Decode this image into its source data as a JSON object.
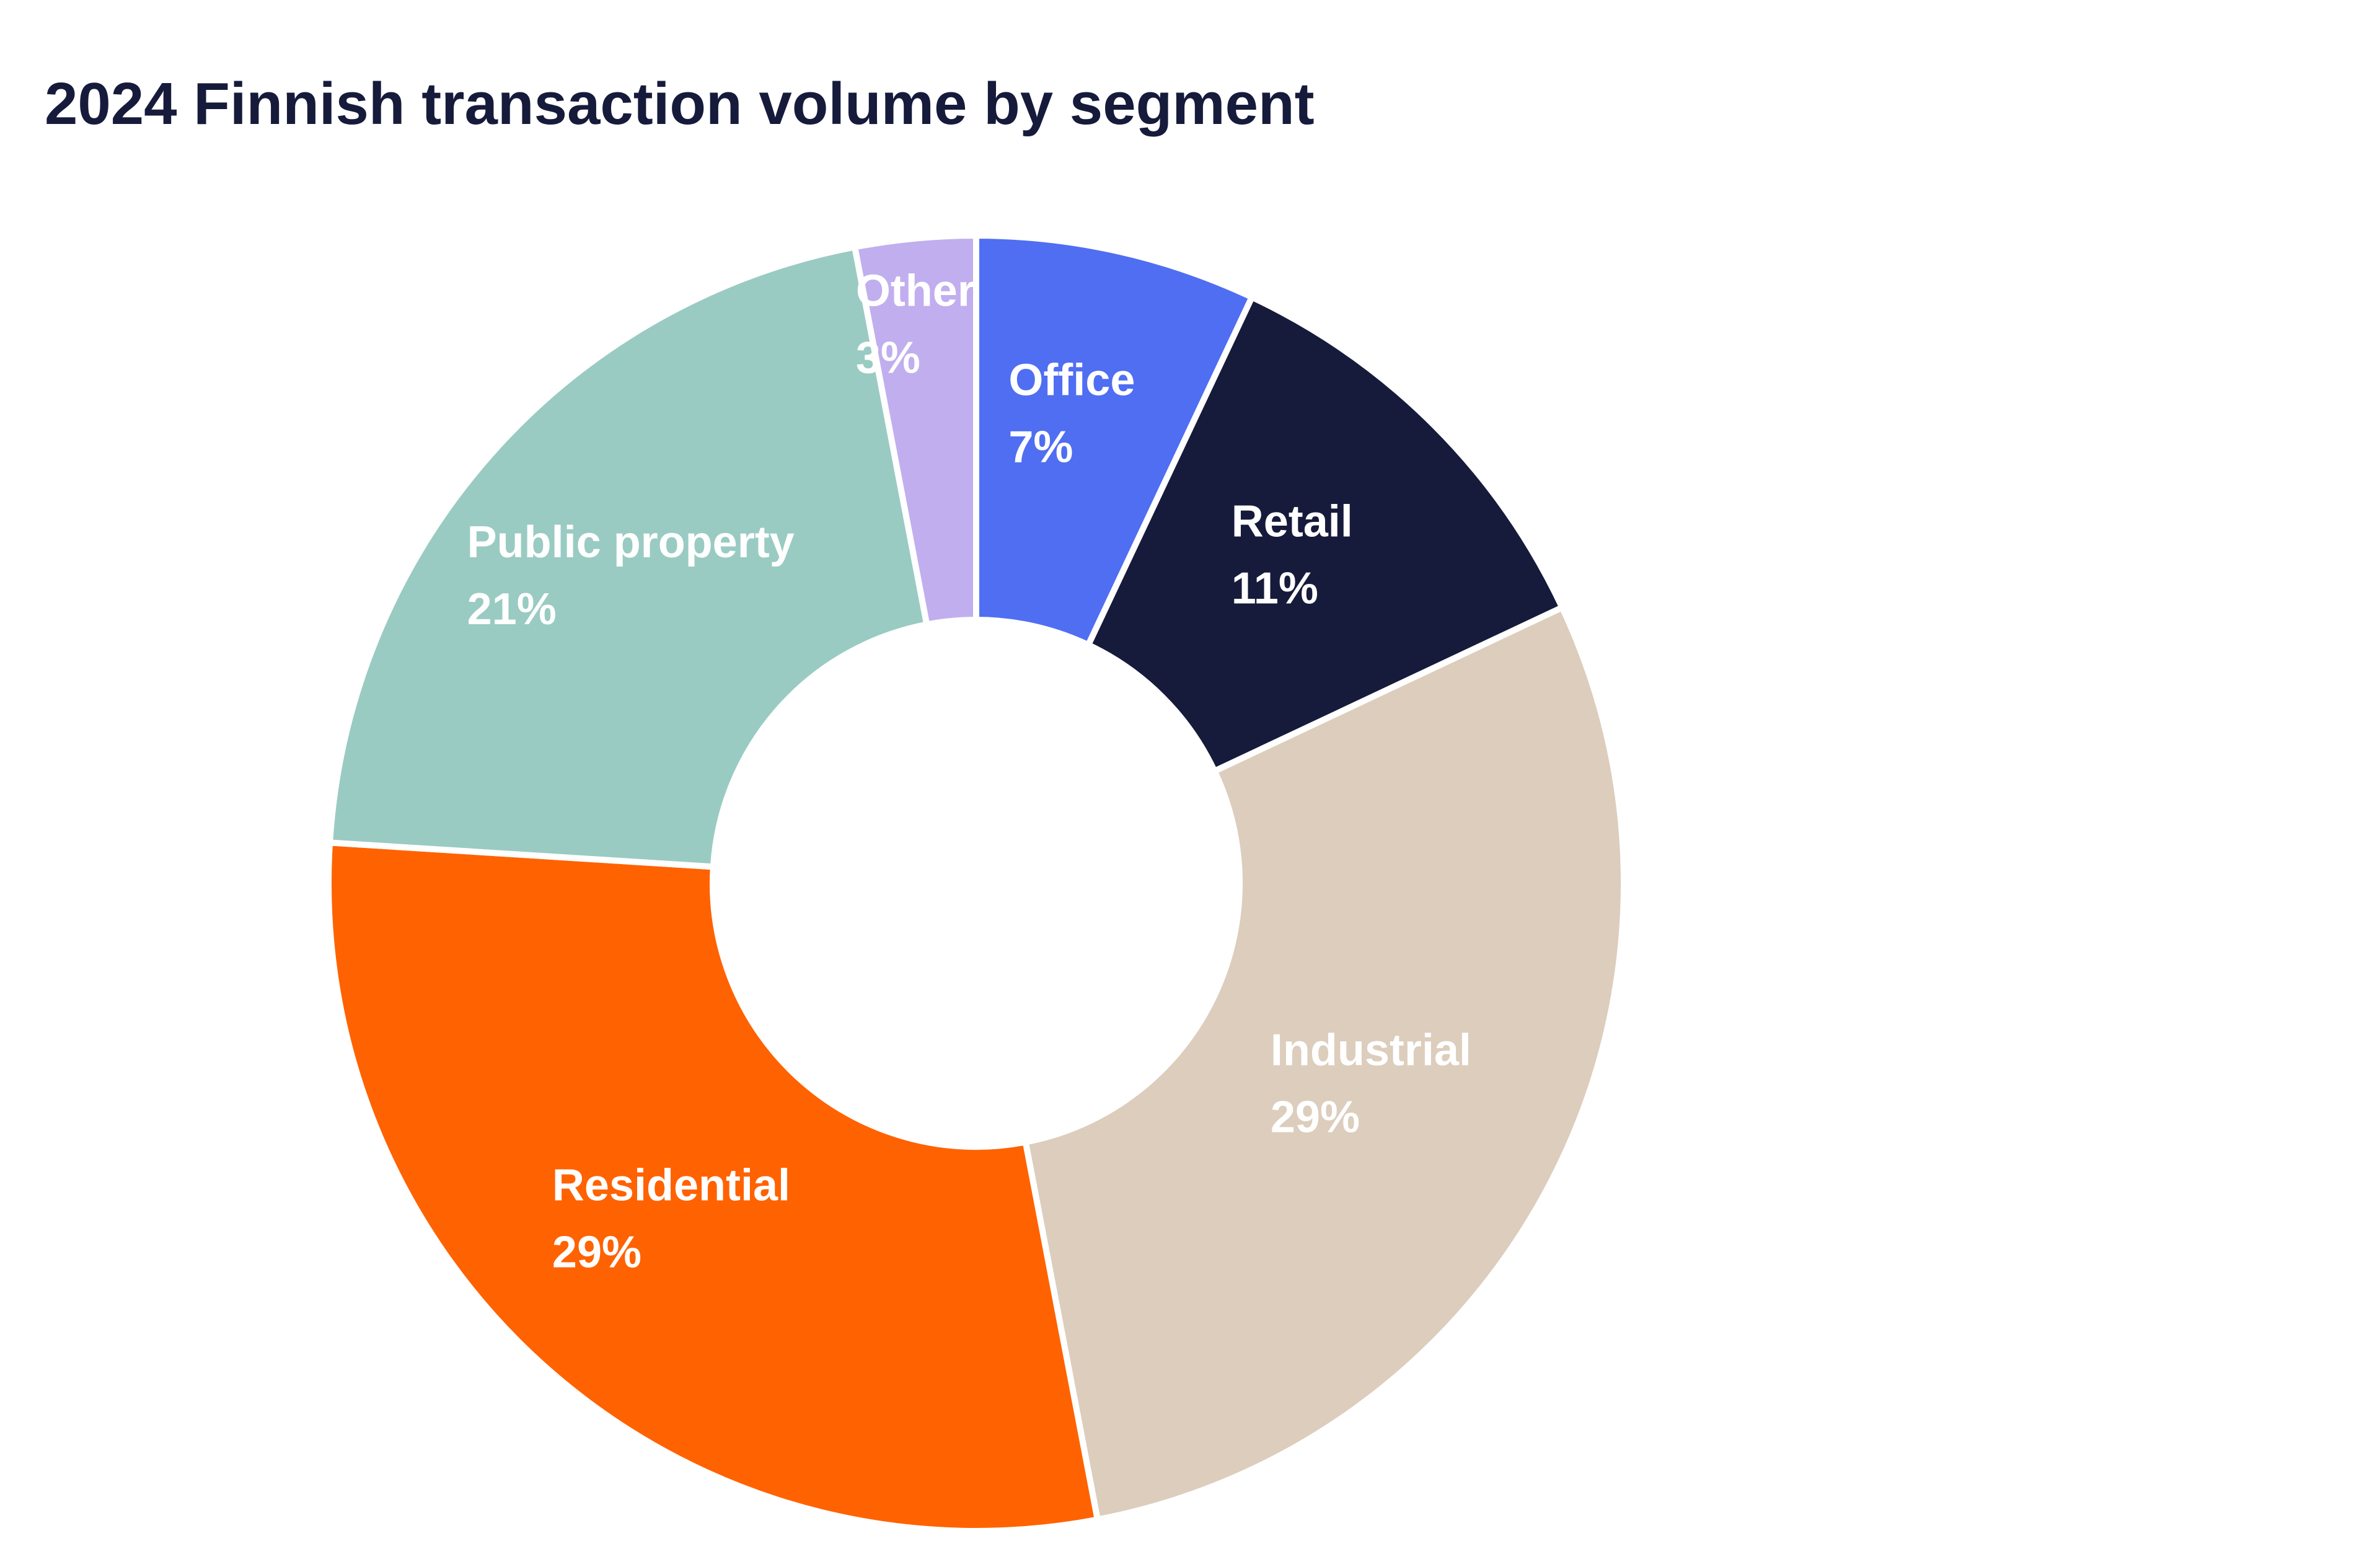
{
  "chart_data": {
    "type": "pie",
    "variant": "donut",
    "title": "2024 Finnish transaction volume by segment",
    "unit": "%",
    "slices": [
      {
        "name": "Office",
        "value": 7,
        "label": "7%",
        "color": "#4f6ef2"
      },
      {
        "name": "Retail",
        "value": 11,
        "label": "11%",
        "color": "#161b3b"
      },
      {
        "name": "Industrial",
        "value": 29,
        "label": "29%",
        "color": "#dccdbd"
      },
      {
        "name": "Residential",
        "value": 29,
        "label": "29%",
        "color": "#ff6200"
      },
      {
        "name": "Public property",
        "value": 21,
        "label": "21%",
        "color": "#99cbc2"
      },
      {
        "name": "Other",
        "value": 3,
        "label": "3%",
        "color": "#c1aeee"
      }
    ],
    "start_angle": "top",
    "direction": "clockwise",
    "legend": "none",
    "data_labels": "inside slices"
  }
}
